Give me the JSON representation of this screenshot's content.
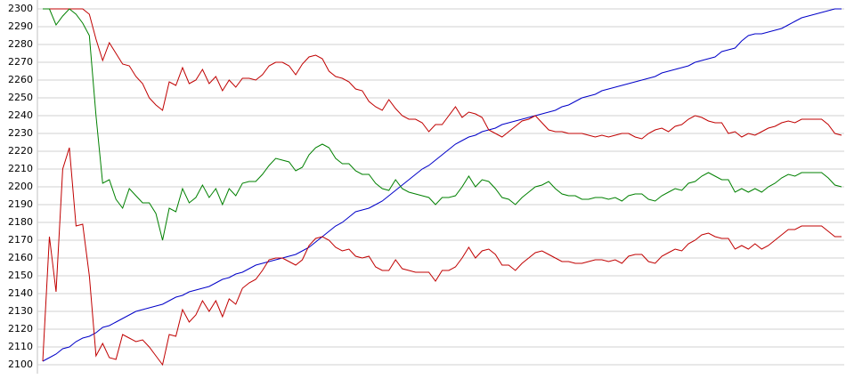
{
  "chart_data": {
    "type": "line",
    "ylim": [
      2095,
      2305
    ],
    "yticks": [
      2100,
      2110,
      2120,
      2130,
      2140,
      2150,
      2160,
      2170,
      2180,
      2190,
      2200,
      2210,
      2220,
      2230,
      2240,
      2250,
      2260,
      2270,
      2280,
      2290,
      2300
    ],
    "grid": true,
    "series": [
      {
        "color": "#0000c8",
        "values": [
          2102,
          2104,
          2106,
          2109,
          2110,
          2113,
          2115,
          2116,
          2118,
          2121,
          2122,
          2124,
          2126,
          2128,
          2130,
          2131,
          2132,
          2133,
          2134,
          2136,
          2138,
          2139,
          2141,
          2142,
          2143,
          2144,
          2146,
          2148,
          2149,
          2151,
          2152,
          2154,
          2156,
          2157,
          2158,
          2159,
          2160,
          2161,
          2162,
          2164,
          2166,
          2169,
          2172,
          2175,
          2178,
          2180,
          2183,
          2186,
          2187,
          2188,
          2190,
          2192,
          2195,
          2198,
          2201,
          2204,
          2207,
          2210,
          2212,
          2215,
          2218,
          2221,
          2224,
          2226,
          2228,
          2229,
          2231,
          2232,
          2233,
          2235,
          2236,
          2237,
          2238,
          2239,
          2240,
          2241,
          2242,
          2243,
          2245,
          2246,
          2248,
          2250,
          2251,
          2252,
          2254,
          2255,
          2256,
          2257,
          2258,
          2259,
          2260,
          2261,
          2262,
          2264,
          2265,
          2266,
          2267,
          2268,
          2270,
          2271,
          2272,
          2273,
          2276,
          2277,
          2278,
          2282,
          2285,
          2286,
          2286,
          2287,
          2288,
          2289,
          2291,
          2293,
          2295,
          2296,
          2297,
          2298,
          2299,
          2300,
          2300
        ]
      },
      {
        "color": "#c00000",
        "values": [
          2300,
          2300,
          2300,
          2300,
          2300,
          2300,
          2300,
          2297,
          2283,
          2271,
          2281,
          2275,
          2269,
          2268,
          2262,
          2258,
          2250,
          2246,
          2243,
          2259,
          2257,
          2267,
          2258,
          2260,
          2266,
          2258,
          2262,
          2254,
          2260,
          2256,
          2261,
          2261,
          2260,
          2263,
          2268,
          2270,
          2270,
          2268,
          2263,
          2269,
          2273,
          2274,
          2272,
          2265,
          2262,
          2261,
          2259,
          2255,
          2254,
          2248,
          2245,
          2243,
          2249,
          2244,
          2240,
          2238,
          2238,
          2236,
          2231,
          2235,
          2235,
          2240,
          2245,
          2239,
          2242,
          2241,
          2239,
          2232,
          2230,
          2228,
          2231,
          2234,
          2237,
          2238,
          2240,
          2236,
          2232,
          2231,
          2231,
          2230,
          2230,
          2230,
          2229,
          2228,
          2229,
          2228,
          2229,
          2230,
          2230,
          2228,
          2227,
          2230,
          2232,
          2233,
          2231,
          2234,
          2235,
          2238,
          2240,
          2239,
          2237,
          2236,
          2236,
          2230,
          2231,
          2228,
          2230,
          2229,
          2231,
          2233,
          2234,
          2236,
          2237,
          2236,
          2238,
          2238,
          2238,
          2238,
          2235,
          2230,
          2229
        ]
      },
      {
        "color": "#008000",
        "values": [
          2300,
          2300,
          2291,
          2296,
          2300,
          2297,
          2292,
          2285,
          2240,
          2202,
          2204,
          2193,
          2188,
          2199,
          2195,
          2191,
          2191,
          2185,
          2170,
          2188,
          2186,
          2199,
          2191,
          2194,
          2201,
          2194,
          2199,
          2190,
          2199,
          2195,
          2202,
          2203,
          2203,
          2207,
          2212,
          2216,
          2215,
          2214,
          2209,
          2211,
          2218,
          2222,
          2224,
          2222,
          2216,
          2213,
          2213,
          2209,
          2207,
          2207,
          2202,
          2199,
          2198,
          2204,
          2199,
          2197,
          2196,
          2195,
          2194,
          2190,
          2194,
          2194,
          2195,
          2200,
          2206,
          2200,
          2204,
          2203,
          2199,
          2194,
          2193,
          2190,
          2194,
          2197,
          2200,
          2201,
          2203,
          2199,
          2196,
          2195,
          2195,
          2193,
          2193,
          2194,
          2194,
          2193,
          2194,
          2192,
          2195,
          2196,
          2196,
          2193,
          2192,
          2195,
          2197,
          2199,
          2198,
          2202,
          2203,
          2206,
          2208,
          2206,
          2204,
          2204,
          2197,
          2199,
          2197,
          2199,
          2197,
          2200,
          2202,
          2205,
          2207,
          2206,
          2208,
          2208,
          2208,
          2208,
          2205,
          2201,
          2200
        ]
      },
      {
        "color": "#c00000",
        "values": [
          2102,
          2172,
          2141,
          2210,
          2222,
          2178,
          2179,
          2150,
          2105,
          2112,
          2104,
          2103,
          2117,
          2115,
          2113,
          2114,
          2110,
          2105,
          2100,
          2117,
          2116,
          2131,
          2124,
          2128,
          2136,
          2130,
          2136,
          2127,
          2137,
          2134,
          2143,
          2146,
          2148,
          2153,
          2159,
          2160,
          2160,
          2158,
          2156,
          2159,
          2167,
          2171,
          2172,
          2170,
          2166,
          2164,
          2165,
          2161,
          2160,
          2161,
          2155,
          2153,
          2153,
          2159,
          2154,
          2153,
          2152,
          2152,
          2152,
          2147,
          2153,
          2153,
          2155,
          2160,
          2166,
          2160,
          2164,
          2165,
          2162,
          2156,
          2156,
          2153,
          2157,
          2160,
          2163,
          2164,
          2162,
          2160,
          2158,
          2158,
          2157,
          2157,
          2158,
          2159,
          2159,
          2158,
          2159,
          2157,
          2161,
          2162,
          2162,
          2158,
          2157,
          2161,
          2163,
          2165,
          2164,
          2168,
          2170,
          2173,
          2174,
          2172,
          2171,
          2171,
          2165,
          2167,
          2165,
          2168,
          2165,
          2167,
          2170,
          2173,
          2176,
          2176,
          2178,
          2178,
          2178,
          2178,
          2175,
          2172,
          2172
        ]
      }
    ]
  }
}
